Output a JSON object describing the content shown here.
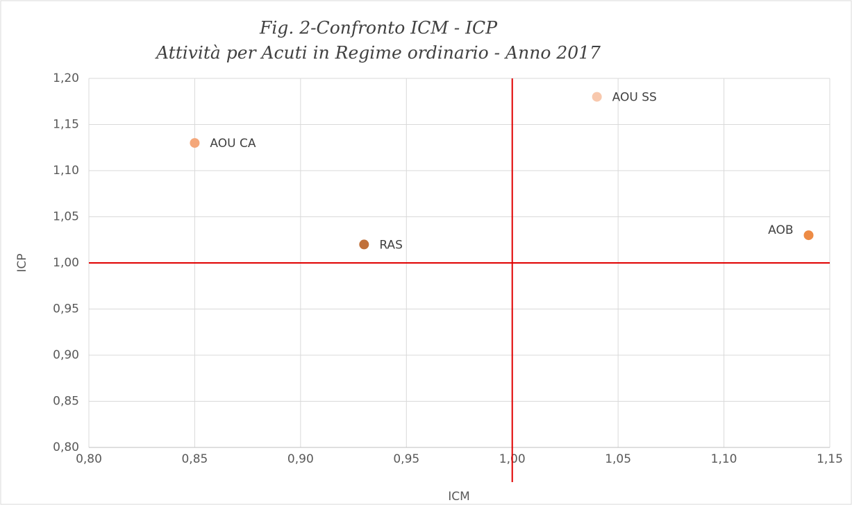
{
  "chart_data": {
    "type": "scatter",
    "title": "Fig. 2-Confronto ICM - ICP",
    "subtitle": "Attività per Acuti in Regime ordinario - Anno 2017",
    "x_label": "ICM",
    "y_label": "ICP",
    "series": [
      {
        "name": "AOU CA",
        "color": "#f4a77a",
        "x": [
          0.85
        ],
        "values": [
          1.13
        ]
      },
      {
        "name": "RAS",
        "color": "#c0703a",
        "x": [
          0.93
        ],
        "values": [
          1.02
        ]
      },
      {
        "name": "AOU SS",
        "color": "#f8c8ad",
        "x": [
          1.04
        ],
        "values": [
          1.18
        ]
      },
      {
        "name": "AOB",
        "color": "#ed8b45",
        "x": [
          1.14
        ],
        "values": [
          1.03
        ]
      }
    ],
    "xlim": [
      0.8,
      1.15
    ],
    "xticks": [
      {
        "value": 0.8,
        "label": "0,80"
      },
      {
        "value": 0.85,
        "label": "0,85"
      },
      {
        "value": 0.9,
        "label": "0,90"
      },
      {
        "value": 0.95,
        "label": "0,95"
      },
      {
        "value": 1.0,
        "label": "1,00"
      },
      {
        "value": 1.05,
        "label": "1,05"
      },
      {
        "value": 1.1,
        "label": "1,10"
      },
      {
        "value": 1.15,
        "label": "1,15"
      }
    ],
    "ylim": [
      0.8,
      1.2
    ],
    "yticks": [
      {
        "value": 0.8,
        "label": "0,80"
      },
      {
        "value": 0.85,
        "label": "0,85"
      },
      {
        "value": 0.9,
        "label": "0,90"
      },
      {
        "value": 0.95,
        "label": "0,95"
      },
      {
        "value": 1.0,
        "label": "1,00"
      },
      {
        "value": 1.05,
        "label": "1,05"
      },
      {
        "value": 1.1,
        "label": "1,10"
      },
      {
        "value": 1.15,
        "label": "1,15"
      },
      {
        "value": 1.2,
        "label": "1,20"
      }
    ],
    "reference_lines": {
      "x": 1.0,
      "y": 1.0,
      "color": "#e00000"
    },
    "grid": true
  }
}
